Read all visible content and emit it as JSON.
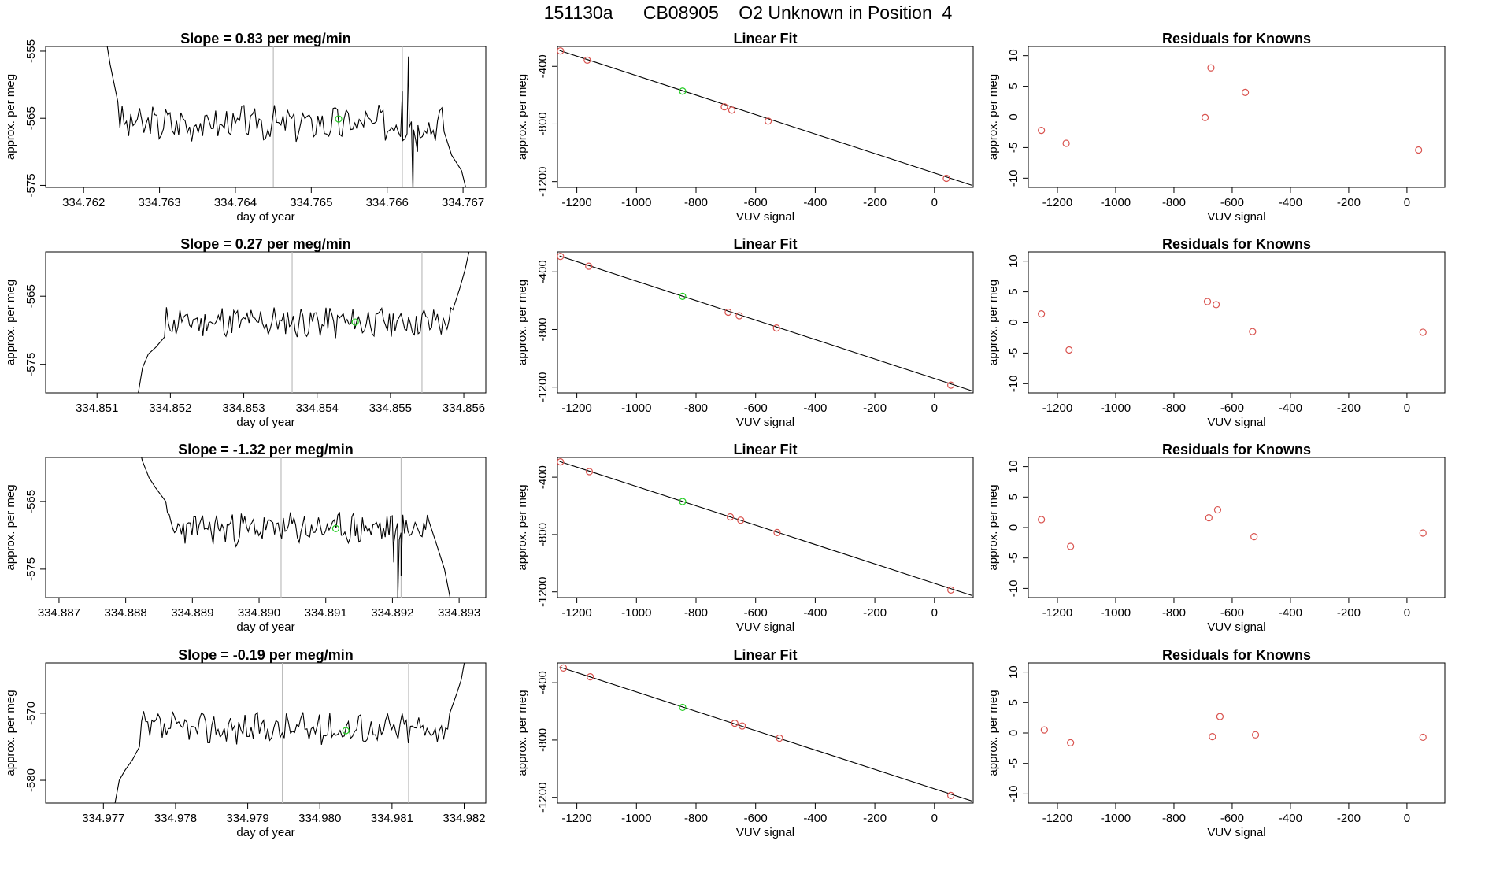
{
  "figure": {
    "title": "151130a      CB08905    O2 Unknown in Position  4",
    "colors": {
      "line": "#000000",
      "known": "#d9534f",
      "unknown": "#22cc22",
      "vline": "#bdbdbd"
    }
  },
  "chart_data": [
    {
      "type": "line",
      "row": 1,
      "title": "Slope =  0.83  per meg/min",
      "xlabel": "day of year",
      "ylabel": "approx. per meg",
      "xlim": [
        334.7615,
        334.7673
      ],
      "ylim": [
        -575.3,
        -554.3
      ],
      "xticks": [
        334.762,
        334.763,
        334.764,
        334.765,
        334.766,
        334.767
      ],
      "xtick_labels": [
        "334.762",
        "334.763",
        "334.764",
        "334.765",
        "334.766",
        "334.767"
      ],
      "yticks": [
        -555,
        -565,
        -575
      ],
      "ytick_labels": [
        "-555",
        "-565",
        "-575"
      ],
      "vlines": [
        334.7645,
        334.7662
      ],
      "unknown_point": {
        "x": 334.76536,
        "y": -565.1
      },
      "trace": {
        "start": 334.76225,
        "end": 334.76705,
        "base": -565.8,
        "amp": 2.2,
        "seed": 3,
        "head": [
          [
            334.76225,
            -550
          ],
          [
            334.76235,
            -557
          ],
          [
            334.76245,
            -562.5
          ]
        ],
        "tail": [
          [
            334.76675,
            -567
          ],
          [
            334.76685,
            -570.5
          ],
          [
            334.76698,
            -572.8
          ],
          [
            334.76705,
            -576
          ]
        ],
        "spikes": [
          [
            334.7662,
            -561.0
          ],
          [
            334.76628,
            -555.8
          ],
          [
            334.76634,
            -576.0
          ],
          [
            334.7664,
            -570.0
          ]
        ]
      }
    },
    {
      "type": "scatter",
      "row": 1,
      "title": "Linear Fit",
      "xlabel": "VUV signal",
      "ylabel": "approx. per meg",
      "xlim": [
        -1265,
        130
      ],
      "ylim": [
        -1240,
        -262
      ],
      "xticks": [
        -1200,
        -1000,
        -800,
        -600,
        -400,
        -200,
        0
      ],
      "xtick_labels": [
        "-1200",
        "-1000",
        "-800",
        "-600",
        "-400",
        "-200",
        "0"
      ],
      "yticks": [
        -400,
        -800,
        -1200
      ],
      "ytick_labels": [
        "-400",
        "-800",
        "-1200"
      ],
      "fit_line": [
        [
          -1258,
          -290
        ],
        [
          125,
          -1225
        ]
      ],
      "known_points": [
        [
          -1255,
          -293
        ],
        [
          -1165,
          -357
        ],
        [
          -705,
          -681
        ],
        [
          -680,
          -704
        ],
        [
          -558,
          -780
        ],
        [
          40,
          -1177
        ]
      ],
      "unknown_point": [
        -845,
        -572
      ]
    },
    {
      "type": "scatter",
      "row": 1,
      "title": "Residuals for Knowns",
      "xlabel": "VUV signal",
      "ylabel": "approx. per meg",
      "xlim": [
        -1300,
        130
      ],
      "ylim": [
        -11.5,
        11.5
      ],
      "xticks": [
        -1200,
        -1000,
        -800,
        -600,
        -400,
        -200,
        0
      ],
      "xtick_labels": [
        "-1200",
        "-1000",
        "-800",
        "-600",
        "-400",
        "-200",
        "0"
      ],
      "yticks": [
        10,
        5,
        0,
        -5,
        -10
      ],
      "ytick_labels": [
        "10",
        "5",
        "0",
        "-5",
        "-10"
      ],
      "points": [
        [
          -1255,
          -2.2
        ],
        [
          -1170,
          -4.3
        ],
        [
          -693,
          -0.1
        ],
        [
          -673,
          8.0
        ],
        [
          -555,
          4.0
        ],
        [
          40,
          -5.4
        ]
      ]
    },
    {
      "type": "line",
      "row": 2,
      "title": "Slope =  0.27  per meg/min",
      "xlabel": "day of year",
      "ylabel": "approx. per meg",
      "xlim": [
        334.8503,
        334.8563
      ],
      "ylim": [
        -579.2,
        -558.5
      ],
      "xticks": [
        334.851,
        334.852,
        334.853,
        334.854,
        334.855,
        334.856
      ],
      "xtick_labels": [
        "334.851",
        "334.852",
        "334.853",
        "334.854",
        "334.855",
        "334.856"
      ],
      "yticks": [
        -565,
        -575
      ],
      "ytick_labels": [
        "-565",
        "-575"
      ],
      "vlines": [
        334.85366,
        334.85543
      ],
      "unknown_point": {
        "x": 334.85452,
        "y": -568.8
      },
      "trace": {
        "start": 334.85155,
        "end": 334.85608,
        "base": -568.8,
        "amp": 2.0,
        "seed": 11,
        "head": [
          [
            334.85155,
            -580
          ],
          [
            334.85162,
            -575.5
          ],
          [
            334.8517,
            -573.5
          ],
          [
            334.8518,
            -572.5
          ],
          [
            334.85192,
            -571
          ]
        ],
        "tail": [
          [
            334.85585,
            -567
          ],
          [
            334.85594,
            -564
          ],
          [
            334.85602,
            -561
          ],
          [
            334.85608,
            -558
          ]
        ],
        "spikes": []
      }
    },
    {
      "type": "scatter",
      "row": 2,
      "title": "Linear Fit",
      "xlabel": "VUV signal",
      "ylabel": "approx. per meg",
      "xlim": [
        -1265,
        130
      ],
      "ylim": [
        -1240,
        -262
      ],
      "xticks": [
        -1200,
        -1000,
        -800,
        -600,
        -400,
        -200,
        0
      ],
      "xtick_labels": [
        "-1200",
        "-1000",
        "-800",
        "-600",
        "-400",
        "-200",
        "0"
      ],
      "yticks": [
        -400,
        -800,
        -1200
      ],
      "ytick_labels": [
        "-400",
        "-800",
        "-1200"
      ],
      "fit_line": [
        [
          -1258,
          -290
        ],
        [
          125,
          -1225
        ]
      ],
      "known_points": [
        [
          -1255,
          -293
        ],
        [
          -1160,
          -361
        ],
        [
          -692,
          -680
        ],
        [
          -655,
          -705
        ],
        [
          -530,
          -790
        ],
        [
          55,
          -1186
        ]
      ],
      "unknown_point": [
        -845,
        -570
      ]
    },
    {
      "type": "scatter",
      "row": 2,
      "title": "Residuals for Knowns",
      "xlabel": "VUV signal",
      "ylabel": "approx. per meg",
      "xlim": [
        -1300,
        130
      ],
      "ylim": [
        -11.5,
        11.5
      ],
      "xticks": [
        -1200,
        -1000,
        -800,
        -600,
        -400,
        -200,
        0
      ],
      "xtick_labels": [
        "-1200",
        "-1000",
        "-800",
        "-600",
        "-400",
        "-200",
        "0"
      ],
      "yticks": [
        10,
        5,
        0,
        -5,
        -10
      ],
      "ytick_labels": [
        "10",
        "5",
        "0",
        "-5",
        "-10"
      ],
      "points": [
        [
          -1255,
          1.4
        ],
        [
          -1160,
          -4.5
        ],
        [
          -685,
          3.4
        ],
        [
          -655,
          2.9
        ],
        [
          -530,
          -1.5
        ],
        [
          55,
          -1.6
        ]
      ]
    },
    {
      "type": "line",
      "row": 3,
      "title": "Slope =  -1.32  per meg/min",
      "xlabel": "day of year",
      "ylabel": "approx. per meg",
      "xlim": [
        334.8868,
        334.8934
      ],
      "ylim": [
        -579.2,
        -558.5
      ],
      "xticks": [
        334.887,
        334.888,
        334.889,
        334.89,
        334.891,
        334.892,
        334.893
      ],
      "xtick_labels": [
        "334.887",
        "334.888",
        "334.889",
        "334.890",
        "334.891",
        "334.892",
        "334.893"
      ],
      "yticks": [
        -565,
        -575
      ],
      "ytick_labels": [
        "-565",
        "-575"
      ],
      "vlines": [
        334.89033,
        334.89213
      ],
      "unknown_point": {
        "x": 334.89115,
        "y": -569.0
      },
      "trace": {
        "start": 334.88815,
        "end": 334.89288,
        "base": -569.0,
        "amp": 2.0,
        "seed": 23,
        "head": [
          [
            334.88815,
            -555
          ],
          [
            334.88825,
            -559
          ],
          [
            334.88835,
            -561.5
          ],
          [
            334.88845,
            -563
          ],
          [
            334.8886,
            -565
          ]
        ],
        "tail": [
          [
            334.89255,
            -568
          ],
          [
            334.89265,
            -571
          ],
          [
            334.89278,
            -575
          ],
          [
            334.89288,
            -580
          ]
        ],
        "spikes": [
          [
            334.89195,
            -570
          ],
          [
            334.89202,
            -574
          ],
          [
            334.89208,
            -579.5
          ],
          [
            334.89213,
            -576
          ]
        ]
      }
    },
    {
      "type": "scatter",
      "row": 3,
      "title": "Linear Fit",
      "xlabel": "VUV signal",
      "ylabel": "approx. per meg",
      "xlim": [
        -1265,
        130
      ],
      "ylim": [
        -1240,
        -262
      ],
      "xticks": [
        -1200,
        -1000,
        -800,
        -600,
        -400,
        -200,
        0
      ],
      "xtick_labels": [
        "-1200",
        "-1000",
        "-800",
        "-600",
        "-400",
        "-200",
        "0"
      ],
      "yticks": [
        -400,
        -800,
        -1200
      ],
      "ytick_labels": [
        "-400",
        "-800",
        "-1200"
      ],
      "fit_line": [
        [
          -1258,
          -290
        ],
        [
          125,
          -1225
        ]
      ],
      "known_points": [
        [
          -1255,
          -293
        ],
        [
          -1158,
          -361
        ],
        [
          -685,
          -677
        ],
        [
          -650,
          -700
        ],
        [
          -528,
          -786
        ],
        [
          55,
          -1187
        ]
      ],
      "unknown_point": [
        -845,
        -570
      ]
    },
    {
      "type": "scatter",
      "row": 3,
      "title": "Residuals for Knowns",
      "xlabel": "VUV signal",
      "ylabel": "approx. per meg",
      "xlim": [
        -1300,
        130
      ],
      "ylim": [
        -11.5,
        11.5
      ],
      "xticks": [
        -1200,
        -1000,
        -800,
        -600,
        -400,
        -200,
        0
      ],
      "xtick_labels": [
        "-1200",
        "-1000",
        "-800",
        "-600",
        "-400",
        "-200",
        "0"
      ],
      "yticks": [
        10,
        5,
        0,
        -5,
        -10
      ],
      "ytick_labels": [
        "10",
        "5",
        "0",
        "-5",
        "-10"
      ],
      "points": [
        [
          -1255,
          1.3
        ],
        [
          -1155,
          -3.1
        ],
        [
          -680,
          1.6
        ],
        [
          -650,
          2.9
        ],
        [
          -525,
          -1.5
        ],
        [
          55,
          -0.9
        ]
      ]
    },
    {
      "type": "line",
      "row": 4,
      "title": "Slope =  -0.19  per meg/min",
      "xlabel": "day of year",
      "ylabel": "approx. per meg",
      "xlim": [
        334.9762,
        334.9823
      ],
      "ylim": [
        -583.4,
        -562.5
      ],
      "xticks": [
        334.977,
        334.978,
        334.979,
        334.98,
        334.981,
        334.982
      ],
      "xtick_labels": [
        "334.977",
        "334.978",
        "334.979",
        "334.980",
        "334.981",
        "334.982"
      ],
      "yticks": [
        -570,
        -580
      ],
      "ytick_labels": [
        "-570",
        "-580"
      ],
      "vlines": [
        334.97948,
        334.98123
      ],
      "unknown_point": {
        "x": 334.98036,
        "y": -572.6
      },
      "trace": {
        "start": 334.97715,
        "end": 334.98201,
        "base": -572.3,
        "amp": 2.0,
        "seed": 37,
        "head": [
          [
            334.97715,
            -584
          ],
          [
            334.97722,
            -580
          ],
          [
            334.9773,
            -578.5
          ],
          [
            334.9774,
            -577
          ],
          [
            334.9775,
            -575
          ]
        ],
        "tail": [
          [
            334.9818,
            -570
          ],
          [
            334.9819,
            -567
          ],
          [
            334.98196,
            -565
          ],
          [
            334.98201,
            -562
          ]
        ],
        "spikes": []
      }
    },
    {
      "type": "scatter",
      "row": 4,
      "title": "Linear Fit",
      "xlabel": "VUV signal",
      "ylabel": "approx. per meg",
      "xlim": [
        -1265,
        130
      ],
      "ylim": [
        -1240,
        -262
      ],
      "xticks": [
        -1200,
        -1000,
        -800,
        -600,
        -400,
        -200,
        0
      ],
      "xtick_labels": [
        "-1200",
        "-1000",
        "-800",
        "-600",
        "-400",
        "-200",
        "0"
      ],
      "yticks": [
        -400,
        -800,
        -1200
      ],
      "ytick_labels": [
        "-400",
        "-800",
        "-1200"
      ],
      "fit_line": [
        [
          -1258,
          -290
        ],
        [
          125,
          -1225
        ]
      ],
      "known_points": [
        [
          -1245,
          -297
        ],
        [
          -1155,
          -359
        ],
        [
          -670,
          -683
        ],
        [
          -645,
          -702
        ],
        [
          -520,
          -787
        ],
        [
          55,
          -1187
        ]
      ],
      "unknown_point": [
        -845,
        -572
      ]
    },
    {
      "type": "scatter",
      "row": 4,
      "title": "Residuals for Knowns",
      "xlabel": "VUV signal",
      "ylabel": "approx. per meg",
      "xlim": [
        -1300,
        130
      ],
      "ylim": [
        -11.5,
        11.5
      ],
      "xticks": [
        -1200,
        -1000,
        -800,
        -600,
        -400,
        -200,
        0
      ],
      "xtick_labels": [
        "-1200",
        "-1000",
        "-800",
        "-600",
        "-400",
        "-200",
        "0"
      ],
      "yticks": [
        10,
        5,
        0,
        -5,
        -10
      ],
      "ytick_labels": [
        "10",
        "5",
        "0",
        "-5",
        "-10"
      ],
      "points": [
        [
          -1245,
          0.5
        ],
        [
          -1155,
          -1.6
        ],
        [
          -668,
          -0.6
        ],
        [
          -642,
          2.7
        ],
        [
          -520,
          -0.3
        ],
        [
          55,
          -0.7
        ]
      ]
    }
  ]
}
